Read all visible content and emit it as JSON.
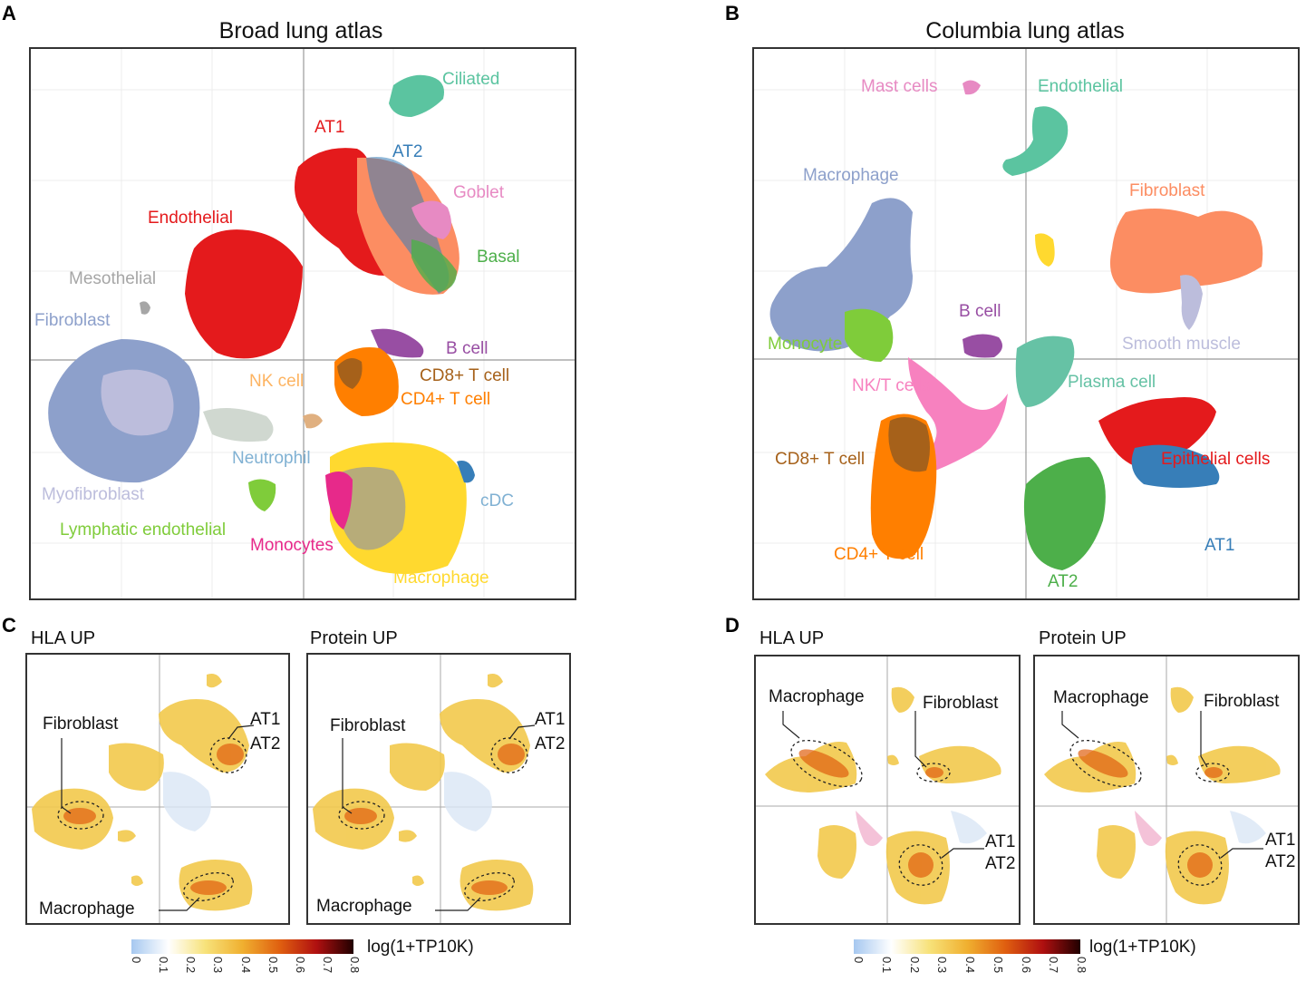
{
  "panels": {
    "A": {
      "letter": "A",
      "title": "Broad lung atlas",
      "labels": [
        {
          "text": "Ciliated",
          "color": "#5bc4a0"
        },
        {
          "text": "AT1",
          "color": "#e41a1c"
        },
        {
          "text": "AT2",
          "color": "#377eb8"
        },
        {
          "text": "Goblet",
          "color": "#e78ac3"
        },
        {
          "text": "Endothelial",
          "color": "#e41a1c"
        },
        {
          "text": "Basal",
          "color": "#4daf4a"
        },
        {
          "text": "Mesothelial",
          "color": "#a6a6a6"
        },
        {
          "text": "Fibroblast",
          "color": "#8da0cb"
        },
        {
          "text": "B cell",
          "color": "#984ea3"
        },
        {
          "text": "NK cell",
          "color": "#fdb462"
        },
        {
          "text": "CD8+ T cell",
          "color": "#a6611a"
        },
        {
          "text": "CD4+ T cell",
          "color": "#ff7f00"
        },
        {
          "text": "Neutrophil",
          "color": "#80b1d3"
        },
        {
          "text": "Myofibroblast",
          "color": "#bcbddc"
        },
        {
          "text": "cDC",
          "color": "#80b1d3"
        },
        {
          "text": "Lymphatic endothelial",
          "color": "#7fcc3a"
        },
        {
          "text": "Monocytes",
          "color": "#e7298a"
        },
        {
          "text": "Macrophage",
          "color": "#ffd92f"
        }
      ]
    },
    "B": {
      "letter": "B",
      "title": "Columbia lung atlas",
      "labels": [
        {
          "text": "Mast cells",
          "color": "#e78ac3"
        },
        {
          "text": "Endothelial",
          "color": "#5bc4a0"
        },
        {
          "text": "Macrophage",
          "color": "#8da0cb"
        },
        {
          "text": "Fibroblast",
          "color": "#fc8d62"
        },
        {
          "text": "B cell",
          "color": "#984ea3"
        },
        {
          "text": "Monocyte",
          "color": "#7fcc3a"
        },
        {
          "text": "Smooth muscle",
          "color": "#bcbddc"
        },
        {
          "text": "NK/T cells",
          "color": "#f781bf"
        },
        {
          "text": "Plasma cell",
          "color": "#66c2a5"
        },
        {
          "text": "CD8+ T cell",
          "color": "#a6611a"
        },
        {
          "text": "Epithelial cells",
          "color": "#e41a1c"
        },
        {
          "text": "AT1",
          "color": "#377eb8"
        },
        {
          "text": "CD4+ T cell",
          "color": "#ff7f00"
        },
        {
          "text": "AT2",
          "color": "#4daf4a"
        }
      ]
    },
    "C": {
      "letter": "C",
      "left": {
        "title": "HLA UP",
        "fibroblast": "Fibroblast",
        "at1": "AT1",
        "at2": "AT2",
        "macrophage": "Macrophage"
      },
      "right": {
        "title": "Protein UP",
        "fibroblast": "Fibroblast",
        "at1": "AT1",
        "at2": "AT2",
        "macrophage": "Macrophage"
      }
    },
    "D": {
      "letter": "D",
      "left": {
        "title": "HLA UP",
        "macrophage": "Macrophage",
        "fibroblast": "Fibroblast",
        "at1": "AT1",
        "at2": "AT2"
      },
      "right": {
        "title": "Protein UP",
        "macrophage": "Macrophage",
        "fibroblast": "Fibroblast",
        "at1": "AT1",
        "at2": "AT2"
      }
    }
  },
  "colorbar": {
    "label": "log(1+TP10K)",
    "ticks": [
      "0",
      "0.1",
      "0.2",
      "0.3",
      "0.4",
      "0.5",
      "0.6",
      "0.7",
      "0.8"
    ],
    "stops": [
      "#a6c8f0",
      "#ffffff",
      "#f7e27a",
      "#f0b030",
      "#e06010",
      "#b01010",
      "#200000"
    ]
  }
}
